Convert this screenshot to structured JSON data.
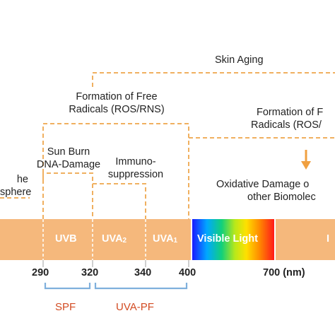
{
  "labels": {
    "skin_aging": "Skin Aging",
    "free_radicals_left_line1": "Formation of Free",
    "free_radicals_left_line2": "Radicals (ROS/RNS)",
    "free_radicals_right_line1": "Formation of F",
    "free_radicals_right_line2": "Radicals (ROS/",
    "sun_burn_line1": "Sun Burn",
    "sun_burn_line2": "DNA-Damage",
    "immuno_line1": "Immuno-",
    "immuno_line2": "suppression",
    "oxidative_line1": "Oxidative Damage o",
    "oxidative_line2": "other Biomolec",
    "atmosphere_line1": "he",
    "atmosphere_line2": "sphere"
  },
  "bands": {
    "uvb": "UVB",
    "uva2_main": "UVA",
    "uva2_sub": "2",
    "uva1_main": "UVA",
    "uva1_sub": "1",
    "visible": "Visible Light",
    "ir": "I"
  },
  "ticks": {
    "t290": "290",
    "t320": "320",
    "t340": "340",
    "t400": "400",
    "t700": "700 (nm)"
  },
  "protection": {
    "spf": "SPF",
    "uva_pf": "UVA-PF"
  },
  "colors": {
    "band_orange": "#f5b87c",
    "connector_orange": "#f0b060",
    "bracket_blue": "#7fb0dc",
    "protection_text": "#d24b22"
  }
}
